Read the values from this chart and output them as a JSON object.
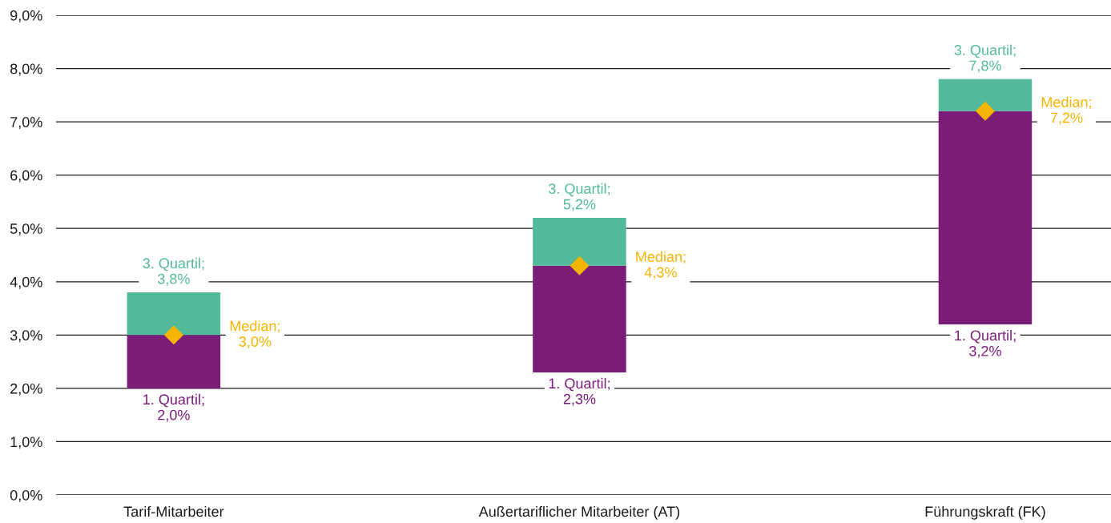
{
  "chart_data": {
    "type": "bar",
    "categories": [
      "Tarif-Mitarbeiter",
      "Außertariflicher Mitarbeiter (AT)",
      "Führungskraft (FK)"
    ],
    "series": [
      {
        "color": "#7a1c78",
        "base": [
          2.0,
          2.3,
          3.2
        ],
        "values": [
          1.0,
          2.0,
          4.0
        ]
      },
      {
        "color": "#52b99a",
        "base": [
          3.0,
          4.3,
          7.2
        ],
        "values": [
          0.8,
          0.9,
          0.6
        ]
      },
      {
        "type": "scatter",
        "color": "#f5b400",
        "marker": "diamond",
        "x": [
          "Tarif-Mitarbeiter",
          "Außertariflicher Mitarbeiter (AT)",
          "Führungskraft (FK)"
        ],
        "values": [
          3.0,
          4.3,
          7.2
        ]
      }
    ],
    "ylim": [
      0,
      9
    ],
    "yticks": [
      {
        "value": 0,
        "label": "0,0%"
      },
      {
        "value": 1,
        "label": "1,0%"
      },
      {
        "value": 2,
        "label": "2,0%"
      },
      {
        "value": 3,
        "label": "3,0%"
      },
      {
        "value": 4,
        "label": "4,0%"
      },
      {
        "value": 5,
        "label": "5,0%"
      },
      {
        "value": 6,
        "label": "6,0%"
      },
      {
        "value": 7,
        "label": "7,0%"
      },
      {
        "value": 8,
        "label": "8,0%"
      },
      {
        "value": 9,
        "label": "9,0%"
      }
    ],
    "grid": "y",
    "annotations": [
      {
        "text": "3. Quartil;\n3,8%",
        "x": "Tarif-Mitarbeiter",
        "y": 3.8
      },
      "Median;\n3,0%",
      {
        "text": "1. Quartil;\n2,0%",
        "x": "Tarif-Mitarbeiter",
        "y": 2.0
      },
      {
        "text": "3. Quartil;\n5,2%",
        "x": "Außertariflicher Mitarbeiter (AT)",
        "y": 5.2
      },
      "Median;\n4,3%",
      {
        "text": "1. Quartil;\n2,3%",
        "x": "Außertariflicher Mitarbeiter (AT)",
        "y": 2.3
      },
      {
        "text": "3. Quartil;\n7,8%",
        "x": "Führungskraft (FK)",
        "y": 7.8
      },
      "Median;\n7,2%",
      {
        "text": "1. Quartil;\n3,2%",
        "x": "Führungskraft (FK)",
        "y": 3.2
      }
    ]
  }
}
